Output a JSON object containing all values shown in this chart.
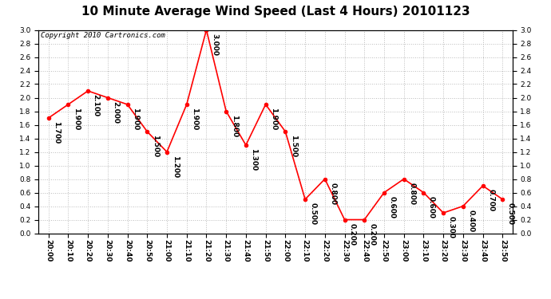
{
  "title": "10 Minute Average Wind Speed (Last 4 Hours) 20101123",
  "copyright_text": "Copyright 2010 Cartronics.com",
  "x_labels": [
    "20:00",
    "20:10",
    "20:20",
    "20:30",
    "20:40",
    "20:50",
    "21:00",
    "21:10",
    "21:20",
    "21:30",
    "21:40",
    "21:50",
    "22:00",
    "22:10",
    "22:20",
    "22:30",
    "22:40",
    "22:50",
    "23:00",
    "23:10",
    "23:20",
    "23:30",
    "23:40",
    "23:50"
  ],
  "y_values": [
    1.7,
    1.9,
    2.1,
    2.0,
    1.9,
    1.5,
    1.2,
    1.9,
    3.0,
    1.8,
    1.3,
    1.9,
    1.5,
    0.5,
    0.8,
    0.2,
    0.2,
    0.6,
    0.8,
    0.6,
    0.3,
    0.4,
    0.7,
    0.5
  ],
  "line_color": "red",
  "marker_color": "red",
  "marker_style": "o",
  "marker_size": 3,
  "line_width": 1.2,
  "ylim": [
    0.0,
    3.0
  ],
  "yticks": [
    0.0,
    0.2,
    0.4,
    0.6,
    0.8,
    1.0,
    1.2,
    1.4,
    1.6,
    1.8,
    2.0,
    2.2,
    2.4,
    2.6,
    2.8,
    3.0
  ],
  "grid_color": "#bbbbbb",
  "bg_color": "white",
  "title_fontsize": 11,
  "label_fontsize": 6.5,
  "annotation_fontsize": 6.5,
  "copyright_fontsize": 6.5,
  "fig_width": 6.9,
  "fig_height": 3.75,
  "dpi": 100
}
